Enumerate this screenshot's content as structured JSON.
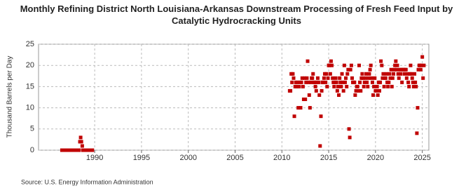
{
  "chart_data": {
    "type": "scatter",
    "title": "Monthly Refining District North Louisiana-Arkansas Downstream Processing of Fresh Feed Input by Catalytic Hydrocracking Units",
    "y_label": "Thousand Barrels per Day",
    "source": "Source: U.S. Energy Information Administration",
    "color": "#c00000",
    "grid": true,
    "xlim": [
      1984,
      2025.7
    ],
    "xticks": [
      1990,
      1995,
      2000,
      2005,
      2010,
      2015,
      2020,
      2025
    ],
    "ylim": [
      0,
      25
    ],
    "yticks": [
      0,
      5,
      10,
      15,
      20,
      25
    ],
    "x": [
      1986.5,
      1986.58,
      1986.67,
      1986.75,
      1986.83,
      1986.92,
      1987,
      1987.08,
      1987.17,
      1987.25,
      1987.33,
      1987.42,
      1987.5,
      1987.58,
      1987.67,
      1987.75,
      1987.83,
      1987.92,
      1988,
      1988.08,
      1988.17,
      1988.25,
      1988.33,
      1988.42,
      1988.5,
      1988.58,
      1988.67,
      1988.75,
      1988.83,
      1988.92,
      1989,
      1989.08,
      1989.17,
      1989.25,
      1989.33,
      1989.42,
      1989.5,
      1989.58,
      1989.67,
      1989.75,
      2010.83,
      2010.92,
      2011,
      2011.08,
      2011.17,
      2011.25,
      2011.33,
      2011.42,
      2011.5,
      2011.58,
      2011.67,
      2011.75,
      2011.83,
      2011.92,
      2012,
      2012.08,
      2012.17,
      2012.25,
      2012.33,
      2012.42,
      2012.5,
      2012.58,
      2012.67,
      2012.75,
      2012.83,
      2012.92,
      2013,
      2013.08,
      2013.17,
      2013.25,
      2013.33,
      2013.42,
      2013.5,
      2013.58,
      2013.67,
      2013.75,
      2013.83,
      2013.92,
      2014,
      2014.08,
      2014.17,
      2014.25,
      2014.33,
      2014.42,
      2014.5,
      2014.58,
      2014.67,
      2014.75,
      2014.83,
      2014.92,
      2015,
      2015.08,
      2015.17,
      2015.25,
      2015.33,
      2015.42,
      2015.5,
      2015.58,
      2015.67,
      2015.75,
      2015.83,
      2015.92,
      2016,
      2016.08,
      2016.17,
      2016.25,
      2016.33,
      2016.42,
      2016.5,
      2016.58,
      2016.67,
      2016.75,
      2016.83,
      2016.92,
      2017,
      2017.08,
      2017.17,
      2017.25,
      2017.33,
      2017.42,
      2017.5,
      2017.58,
      2017.67,
      2017.75,
      2017.83,
      2017.92,
      2018,
      2018.08,
      2018.17,
      2018.25,
      2018.33,
      2018.42,
      2018.5,
      2018.58,
      2018.67,
      2018.75,
      2018.83,
      2018.92,
      2019,
      2019.08,
      2019.17,
      2019.25,
      2019.33,
      2019.42,
      2019.5,
      2019.58,
      2019.67,
      2019.75,
      2019.83,
      2019.92,
      2020,
      2020.08,
      2020.17,
      2020.25,
      2020.33,
      2020.42,
      2020.5,
      2020.58,
      2020.67,
      2020.75,
      2020.83,
      2020.92,
      2021,
      2021.08,
      2021.17,
      2021.25,
      2021.33,
      2021.42,
      2021.5,
      2021.58,
      2021.67,
      2021.75,
      2021.83,
      2021.92,
      2022,
      2022.08,
      2022.17,
      2022.25,
      2022.33,
      2022.42,
      2022.5,
      2022.58,
      2022.67,
      2022.75,
      2022.83,
      2022.92,
      2023,
      2023.08,
      2023.17,
      2023.25,
      2023.33,
      2023.42,
      2023.5,
      2023.58,
      2023.67,
      2023.75,
      2023.83,
      2023.92,
      2024,
      2024.08,
      2024.17,
      2024.25,
      2024.33,
      2024.42,
      2024.5,
      2024.58,
      2024.67,
      2024.75,
      2024.83,
      2024.92,
      2025,
      2025.08,
      2025.17
    ],
    "values": [
      0,
      0,
      0,
      0,
      0,
      0,
      0,
      0,
      0,
      0,
      0,
      0,
      0,
      0,
      0,
      0,
      0,
      0,
      0,
      0,
      0,
      0,
      0,
      2,
      3,
      2,
      1,
      0,
      0,
      0,
      0,
      0,
      0,
      0,
      0,
      0,
      0,
      0,
      0,
      0,
      14,
      14,
      18,
      16,
      18,
      17,
      8,
      15,
      16,
      15,
      16,
      10,
      15,
      16,
      10,
      16,
      17,
      15,
      12,
      17,
      12,
      16,
      17,
      21,
      16,
      13,
      10,
      16,
      17,
      17,
      18,
      16,
      16,
      15,
      14,
      16,
      17,
      16,
      13,
      1,
      8,
      14,
      16,
      16,
      17,
      18,
      16,
      18,
      15,
      17,
      20,
      20,
      18,
      21,
      20,
      17,
      16,
      15,
      16,
      17,
      16,
      14,
      15,
      13,
      17,
      16,
      15,
      18,
      16,
      14,
      20,
      16,
      17,
      15,
      18,
      19,
      5,
      3,
      19,
      20,
      17,
      16,
      16,
      16,
      13,
      14,
      15,
      15,
      14,
      20,
      16,
      14,
      17,
      18,
      17,
      15,
      16,
      17,
      18,
      16,
      15,
      17,
      18,
      19,
      20,
      17,
      16,
      13,
      15,
      17,
      14,
      14,
      15,
      13,
      16,
      14,
      16,
      21,
      20,
      17,
      18,
      15,
      17,
      17,
      18,
      16,
      15,
      16,
      18,
      17,
      19,
      15,
      17,
      18,
      19,
      20,
      21,
      19,
      20,
      18,
      17,
      19,
      18,
      19,
      16,
      19,
      19,
      18,
      19,
      19,
      17,
      18,
      16,
      15,
      18,
      20,
      18,
      17,
      16,
      15,
      18,
      16,
      15,
      4,
      10,
      19,
      20,
      20,
      19,
      20,
      22,
      17,
      20
    ]
  }
}
